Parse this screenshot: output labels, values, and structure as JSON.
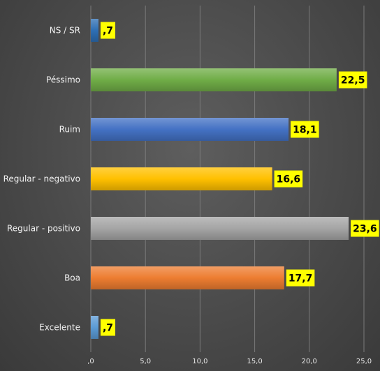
{
  "chart_data": {
    "type": "bar",
    "orientation": "horizontal",
    "title": "",
    "xlabel": "",
    "ylabel": "",
    "categories": [
      "NS / SR",
      "Péssimo",
      "Ruim",
      "Regular - negativo",
      "Regular - positivo",
      "Boa",
      "Excelente"
    ],
    "values": [
      0.7,
      22.5,
      18.1,
      16.6,
      23.6,
      17.7,
      0.7
    ],
    "value_labels": [
      ",7",
      "22,5",
      "18,1",
      "16,6",
      "23,6",
      "17,7",
      ",7"
    ],
    "bar_colors": [
      "#2e6fb4",
      "#70ad47",
      "#4472c4",
      "#ffc000",
      "#a5a5a5",
      "#ed7d31",
      "#5b9bd5"
    ],
    "label_background": "#ffff00",
    "xlim": [
      0,
      25
    ],
    "xticks": [
      0,
      5,
      10,
      15,
      20,
      25
    ],
    "xtick_labels": [
      ",0",
      "5,0",
      "10,0",
      "15,0",
      "20,0",
      "25,0"
    ],
    "grid": true,
    "legend": "none"
  }
}
